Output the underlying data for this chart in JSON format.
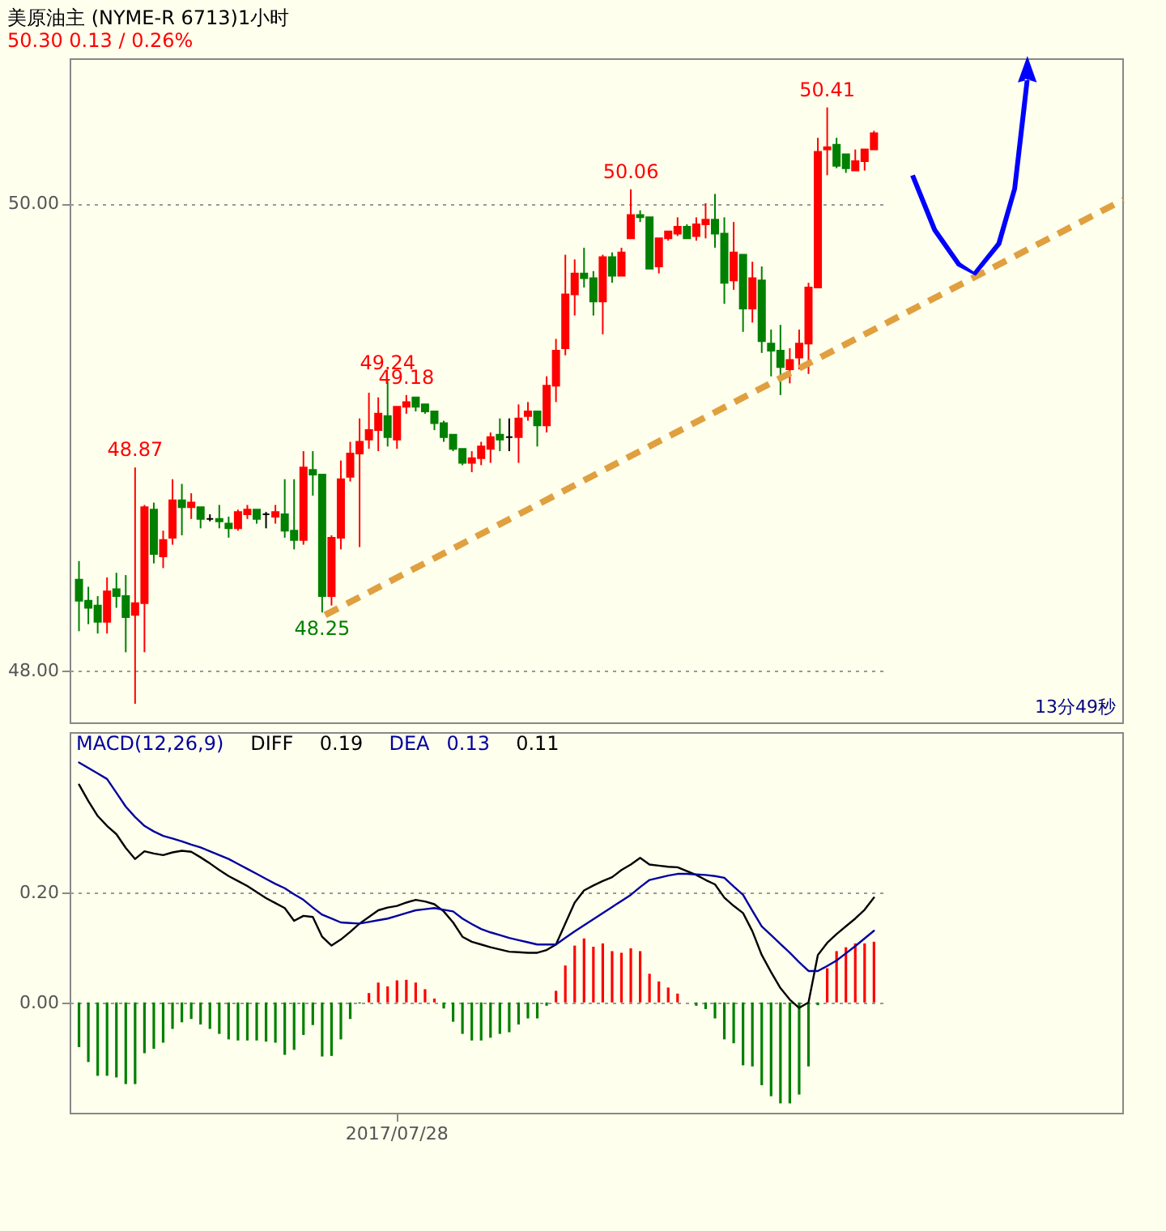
{
  "chart_data": [
    {
      "type": "candlestick",
      "title": "美原油主 (NYME-R 6713)1小时",
      "subtitle": "50.30  0.13 / 0.26%",
      "categories": [
        null,
        null,
        null,
        null,
        null,
        null,
        null,
        null,
        null,
        null,
        null,
        null,
        null,
        null,
        null,
        null,
        null,
        null,
        null,
        null,
        null,
        null,
        null,
        null,
        null,
        null,
        null,
        null,
        null,
        null,
        null,
        null,
        null,
        null,
        null,
        null,
        null,
        null,
        null,
        null,
        null,
        null,
        null,
        null,
        null,
        null,
        null,
        null,
        null,
        null,
        null,
        null,
        null,
        null,
        null,
        null,
        null,
        null,
        null,
        null,
        null,
        null,
        null,
        null,
        null,
        null,
        null,
        null,
        null,
        null,
        null,
        null,
        null,
        null,
        null,
        null,
        null,
        null,
        null,
        null,
        null,
        null,
        null,
        null,
        null,
        null
      ],
      "ohlc": [
        [
          48.39,
          48.47,
          48.17,
          48.3
        ],
        [
          48.3,
          48.36,
          48.2,
          48.27
        ],
        [
          48.28,
          48.32,
          48.16,
          48.21
        ],
        [
          48.21,
          48.4,
          48.16,
          48.34
        ],
        [
          48.35,
          48.42,
          48.27,
          48.32
        ],
        [
          48.32,
          48.41,
          48.08,
          48.23
        ],
        [
          48.24,
          48.87,
          47.86,
          48.29
        ],
        [
          48.29,
          48.71,
          48.08,
          48.7
        ],
        [
          48.69,
          48.72,
          48.46,
          48.5
        ],
        [
          48.49,
          48.6,
          48.44,
          48.56
        ],
        [
          48.57,
          48.82,
          48.54,
          48.73
        ],
        [
          48.73,
          48.8,
          48.58,
          48.7
        ],
        [
          48.7,
          48.76,
          48.65,
          48.72
        ],
        [
          48.7,
          48.7,
          48.61,
          48.65
        ],
        [
          48.65,
          48.67,
          48.64,
          48.65
        ],
        [
          48.65,
          48.71,
          48.61,
          48.64
        ],
        [
          48.63,
          48.66,
          48.57,
          48.61
        ],
        [
          48.61,
          48.69,
          48.6,
          48.68
        ],
        [
          48.67,
          48.71,
          48.65,
          48.69
        ],
        [
          48.69,
          48.69,
          48.63,
          48.65
        ],
        [
          48.67,
          48.68,
          48.61,
          48.67
        ],
        [
          48.66,
          48.71,
          48.63,
          48.68
        ],
        [
          48.67,
          48.82,
          48.57,
          48.6
        ],
        [
          48.6,
          48.82,
          48.52,
          48.56
        ],
        [
          48.56,
          48.94,
          48.54,
          48.87
        ],
        [
          48.86,
          48.94,
          48.75,
          48.84
        ],
        [
          48.84,
          48.84,
          48.25,
          48.32
        ],
        [
          48.32,
          48.58,
          48.28,
          48.57
        ],
        [
          48.57,
          48.9,
          48.52,
          48.82
        ],
        [
          48.83,
          48.98,
          48.81,
          48.93
        ],
        [
          48.93,
          49.08,
          48.53,
          48.98
        ],
        [
          48.99,
          49.19,
          48.95,
          49.03
        ],
        [
          49.03,
          49.17,
          48.94,
          49.1
        ],
        [
          49.09,
          49.24,
          48.96,
          49.0
        ],
        [
          48.99,
          49.13,
          48.95,
          49.13
        ],
        [
          49.13,
          49.18,
          49.1,
          49.15
        ],
        [
          49.17,
          49.17,
          49.11,
          49.13
        ],
        [
          49.14,
          49.14,
          49.1,
          49.11
        ],
        [
          49.11,
          49.11,
          49.03,
          49.06
        ],
        [
          49.06,
          49.07,
          48.98,
          49.0
        ],
        [
          49.01,
          49.01,
          48.94,
          48.95
        ],
        [
          48.95,
          48.95,
          48.88,
          48.89
        ],
        [
          48.89,
          48.94,
          48.85,
          48.91
        ],
        [
          48.91,
          48.98,
          48.88,
          48.96
        ],
        [
          48.95,
          49.02,
          48.89,
          49.0
        ],
        [
          49.01,
          49.08,
          48.94,
          48.99
        ],
        [
          49.0,
          49.08,
          48.94,
          49.0
        ],
        [
          49.0,
          49.14,
          48.89,
          49.08
        ],
        [
          49.09,
          49.15,
          49.07,
          49.11
        ],
        [
          49.11,
          49.11,
          48.96,
          49.05
        ],
        [
          49.05,
          49.26,
          49.02,
          49.22
        ],
        [
          49.22,
          49.42,
          49.15,
          49.37
        ],
        [
          49.38,
          49.78,
          49.35,
          49.61
        ],
        [
          49.61,
          49.76,
          49.52,
          49.7
        ],
        [
          49.7,
          49.81,
          49.64,
          49.68
        ],
        [
          49.68,
          49.71,
          49.52,
          49.58
        ],
        [
          49.58,
          49.78,
          49.44,
          49.77
        ],
        [
          49.77,
          49.79,
          49.66,
          49.69
        ],
        [
          49.69,
          49.81,
          49.69,
          49.79
        ],
        [
          49.85,
          50.06,
          49.85,
          49.95
        ],
        [
          49.95,
          49.97,
          49.92,
          49.94
        ],
        [
          49.94,
          49.94,
          49.72,
          49.72
        ],
        [
          49.73,
          49.85,
          49.7,
          49.85
        ],
        [
          49.85,
          49.88,
          49.84,
          49.88
        ],
        [
          49.87,
          49.94,
          49.86,
          49.9
        ],
        [
          49.9,
          49.91,
          49.85,
          49.85
        ],
        [
          49.86,
          49.94,
          49.84,
          49.91
        ],
        [
          49.91,
          50.0,
          49.85,
          49.93
        ],
        [
          49.93,
          50.04,
          49.81,
          49.87
        ],
        [
          49.87,
          49.94,
          49.57,
          49.66
        ],
        [
          49.67,
          49.92,
          49.63,
          49.79
        ],
        [
          49.78,
          49.78,
          49.45,
          49.55
        ],
        [
          49.55,
          49.75,
          49.49,
          49.68
        ],
        [
          49.67,
          49.73,
          49.36,
          49.41
        ],
        [
          49.4,
          49.46,
          49.26,
          49.37
        ],
        [
          49.37,
          49.48,
          49.18,
          49.3
        ],
        [
          49.29,
          49.38,
          49.23,
          49.33
        ],
        [
          49.34,
          49.46,
          49.29,
          49.4
        ],
        [
          49.4,
          49.66,
          49.27,
          49.64
        ],
        [
          49.64,
          50.28,
          49.64,
          50.22
        ],
        [
          50.23,
          50.41,
          50.12,
          50.24
        ],
        [
          50.25,
          50.28,
          50.15,
          50.16
        ],
        [
          50.21,
          50.21,
          50.13,
          50.15
        ],
        [
          50.14,
          50.23,
          50.14,
          50.18
        ],
        [
          50.18,
          50.23,
          50.14,
          50.23
        ],
        [
          50.23,
          50.31,
          50.23,
          50.3
        ]
      ],
      "ylim": [
        47.78,
        50.62
      ],
      "yticks": [
        {
          "value": 50,
          "label": "50.00"
        },
        {
          "value": 48,
          "label": "48.00"
        }
      ],
      "grid": "y",
      "tick_labels": "y",
      "annotations": [
        {
          "text": "48.87",
          "y": 48.87
        },
        {
          "text": "49.24",
          "y": 49.24
        },
        {
          "text": "50.06",
          "y": 50.06
        },
        {
          "text": "50.41",
          "y": 50.41
        },
        {
          "text": "48.25",
          "y": 48.25
        },
        {
          "text": "49.18",
          "y": 49.18
        },
        "13分49秒"
      ]
    },
    {
      "type": "bar",
      "title": "MACD(12,26,9)",
      "categories": [
        null,
        null,
        null,
        null,
        null,
        null,
        null,
        null,
        null,
        null,
        null,
        null,
        null,
        null,
        null,
        null,
        null,
        null,
        null,
        null,
        null,
        null,
        null,
        null,
        null,
        null,
        null,
        null,
        null,
        null,
        null,
        null,
        null,
        null,
        "2017/07/28",
        null,
        null,
        null,
        null,
        null,
        null,
        null,
        null,
        null,
        null,
        null,
        null,
        null,
        null,
        null,
        null,
        null,
        null,
        null,
        null,
        null,
        null,
        null,
        null,
        null,
        null,
        null,
        null,
        null,
        null,
        null,
        null,
        null,
        null,
        null,
        null,
        null,
        null,
        null,
        null,
        null,
        null,
        null,
        null,
        null,
        null,
        null,
        null,
        null,
        null,
        null
      ],
      "series": [
        {
          "type": "bar",
          "colors": [
            "#008000",
            "#008000",
            "#008000",
            "#008000",
            "#008000",
            "#008000",
            "#008000",
            "#008000",
            "#008000",
            "#008000",
            "#008000",
            "#008000",
            "#008000",
            "#008000",
            "#008000",
            "#008000",
            "#008000",
            "#008000",
            "#008000",
            "#008000",
            "#008000",
            "#008000",
            "#008000",
            "#008000",
            "#008000",
            "#008000",
            "#008000",
            "#008000",
            "#008000",
            "#008000",
            "#008000",
            "#ff0000",
            "#ff0000",
            "#ff0000",
            "#ff0000",
            "#ff0000",
            "#ff0000",
            "#ff0000",
            "#ff0000",
            "#008000",
            "#008000",
            "#008000",
            "#008000",
            "#008000",
            "#008000",
            "#008000",
            "#008000",
            "#008000",
            "#008000",
            "#008000",
            "#008000",
            "#ff0000",
            "#ff0000",
            "#ff0000",
            "#ff0000",
            "#ff0000",
            "#ff0000",
            "#ff0000",
            "#ff0000",
            "#ff0000",
            "#ff0000",
            "#ff0000",
            "#ff0000",
            "#ff0000",
            "#ff0000",
            "#008000",
            "#008000",
            "#008000",
            "#008000",
            "#008000",
            "#008000",
            "#008000",
            "#008000",
            "#008000",
            "#008000",
            "#008000",
            "#008000",
            "#008000",
            "#008000",
            "#008000",
            "#ff0000",
            "#ff0000",
            "#ff0000",
            "#ff0000",
            "#ff0000",
            "#ff0000"
          ],
          "values": [
            -0.081,
            -0.108,
            -0.133,
            -0.133,
            -0.136,
            -0.148,
            -0.148,
            -0.092,
            -0.084,
            -0.073,
            -0.048,
            -0.036,
            -0.03,
            -0.04,
            -0.048,
            -0.057,
            -0.067,
            -0.069,
            -0.069,
            -0.069,
            -0.071,
            -0.073,
            -0.095,
            -0.086,
            -0.059,
            -0.041,
            -0.098,
            -0.097,
            -0.067,
            -0.03,
            -0.002,
            0.017,
            0.036,
            0.029,
            0.04,
            0.041,
            0.036,
            0.024,
            0.007,
            -0.011,
            -0.035,
            -0.057,
            -0.069,
            -0.069,
            -0.064,
            -0.057,
            -0.054,
            -0.04,
            -0.029,
            -0.029,
            -0.006,
            0.021,
            0.067,
            0.103,
            0.116,
            0.101,
            0.107,
            0.093,
            0.09,
            0.098,
            0.093,
            0.052,
            0.038,
            0.027,
            0.016,
            0,
            -0.006,
            -0.012,
            -0.029,
            -0.067,
            -0.074,
            -0.114,
            -0.116,
            -0.15,
            -0.17,
            -0.183,
            -0.183,
            -0.167,
            -0.116,
            -0.005,
            0.062,
            0.093,
            0.1,
            0.107,
            0.107,
            0.11
          ]
        },
        {
          "type": "line",
          "name": "DIFF",
          "color": "#000000",
          "values": [
            0.395,
            0.365,
            0.338,
            0.32,
            0.305,
            0.28,
            0.26,
            0.274,
            0.27,
            0.267,
            0.272,
            0.275,
            0.273,
            0.263,
            0.252,
            0.24,
            0.229,
            0.22,
            0.211,
            0.2,
            0.189,
            0.18,
            0.171,
            0.148,
            0.157,
            0.155,
            0.119,
            0.103,
            0.114,
            0.128,
            0.143,
            0.155,
            0.167,
            0.172,
            0.175,
            0.181,
            0.186,
            0.183,
            0.178,
            0.165,
            0.145,
            0.119,
            0.11,
            0.105,
            0.1,
            0.096,
            0.092,
            0.091,
            0.09,
            0.09,
            0.095,
            0.105,
            0.143,
            0.181,
            0.203,
            0.212,
            0.22,
            0.227,
            0.24,
            0.25,
            0.262,
            0.25,
            0.248,
            0.246,
            0.245,
            0.238,
            0.231,
            0.222,
            0.214,
            0.19,
            0.175,
            0.162,
            0.129,
            0.086,
            0.055,
            0.026,
            0.005,
            -0.01,
            0,
            0.086,
            0.108,
            0.124,
            0.138,
            0.152,
            0.168,
            0.19
          ]
        },
        {
          "type": "line",
          "name": "DEA",
          "color": "#0000a0",
          "values": [
            0.435,
            0.425,
            0.415,
            0.405,
            0.38,
            0.355,
            0.336,
            0.32,
            0.31,
            0.302,
            0.297,
            0.292,
            0.286,
            0.281,
            0.274,
            0.267,
            0.26,
            0.251,
            0.242,
            0.233,
            0.224,
            0.215,
            0.207,
            0.196,
            0.186,
            0.172,
            0.159,
            0.152,
            0.145,
            0.144,
            0.143,
            0.146,
            0.149,
            0.152,
            0.157,
            0.162,
            0.167,
            0.169,
            0.171,
            0.168,
            0.165,
            0.152,
            0.142,
            0.133,
            0.127,
            0.122,
            0.117,
            0.113,
            0.109,
            0.105,
            0.105,
            0.105,
            0.117,
            0.129,
            0.14,
            0.151,
            0.162,
            0.173,
            0.184,
            0.195,
            0.209,
            0.222,
            0.226,
            0.23,
            0.233,
            0.233,
            0.232,
            0.231,
            0.229,
            0.226,
            0.21,
            0.195,
            0.166,
            0.138,
            0.122,
            0.106,
            0.09,
            0.073,
            0.057,
            0.057,
            0.066,
            0.076,
            0.089,
            0.102,
            0.116,
            0.13
          ]
        }
      ],
      "ylim": [
        -0.2,
        0.49
      ],
      "yticks": [
        {
          "value": 0.2,
          "label": "0.20"
        },
        {
          "value": 0,
          "label": "0.00"
        }
      ],
      "grid": "y",
      "legend": "top left",
      "annotations": [
        "0.19",
        "0.13",
        "0.11"
      ]
    }
  ]
}
